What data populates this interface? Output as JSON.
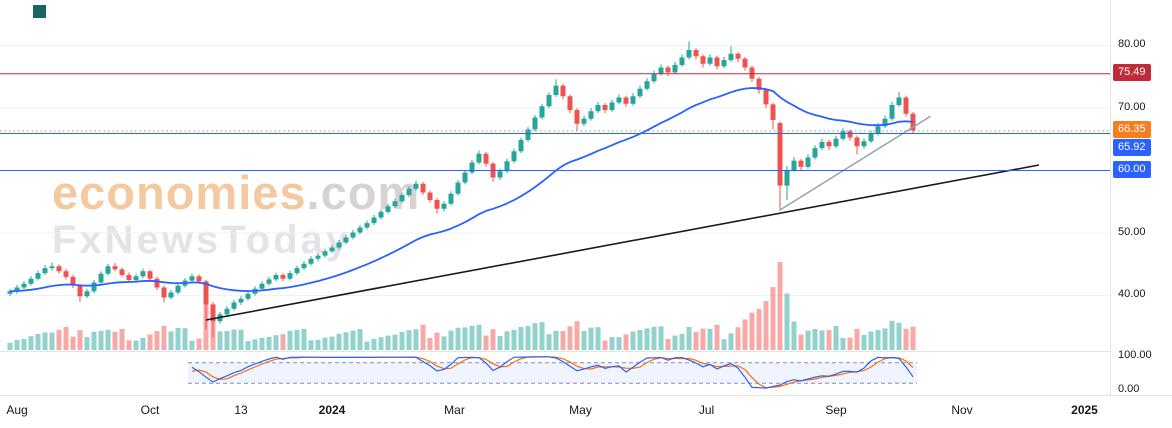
{
  "watermark": {
    "brand": "economies",
    "suffix": ".com",
    "subtitle": "FxNewsToday"
  },
  "colors": {
    "background": "#ffffff",
    "grid": "#eef1f6",
    "candle_up": "#26a69a",
    "candle_down": "#ef5350",
    "volume_up": "rgba(38,166,154,0.5)",
    "volume_down": "rgba(239,83,80,0.5)",
    "ma_line": "#2962ff",
    "axis_text": "#131722",
    "pane_separator": "#e0e3eb"
  },
  "chart_data": {
    "type": "candlestick",
    "title": "",
    "y_ticks": [
      {
        "label": "80.00",
        "price": 80
      },
      {
        "label": "70.00",
        "price": 70
      },
      {
        "label": "50.00",
        "price": 50
      },
      {
        "label": "40.00",
        "price": 40
      }
    ],
    "osc_ticks": [
      {
        "label": "100.00",
        "value": 100
      },
      {
        "label": "0.00",
        "value": 0
      }
    ],
    "x_ticks": [
      {
        "label": "Aug",
        "bar": 1,
        "bold": false
      },
      {
        "label": "Oct",
        "bar": 20,
        "bold": false
      },
      {
        "label": "13",
        "bar": 33,
        "bold": false
      },
      {
        "label": "2024",
        "bar": 46,
        "bold": true
      },
      {
        "label": "Mar",
        "bar": 63.5,
        "bold": false
      },
      {
        "label": "May",
        "bar": 81.5,
        "bold": false
      },
      {
        "label": "Jul",
        "bar": 99.5,
        "bold": false
      },
      {
        "label": "Sep",
        "bar": 118,
        "bold": false
      },
      {
        "label": "Nov",
        "bar": 136,
        "bold": false
      },
      {
        "label": "2025",
        "bar": 153.5,
        "bold": true
      }
    ],
    "price_grid": [
      80,
      70,
      60,
      50,
      40
    ],
    "price_lines": [
      {
        "price": 75.49,
        "label": "75.49",
        "color": "#c02b3a",
        "style": "solid"
      },
      {
        "price": 66.35,
        "label": "66.35",
        "color": "#f57f1f",
        "style": "dotted",
        "line_color": "#9598a1"
      },
      {
        "price": 65.92,
        "label": "65.92",
        "color": "#2962ff",
        "style": "solid"
      },
      {
        "price": 60.0,
        "label": "60.00",
        "color": "#2962ff",
        "style": "solid"
      }
    ],
    "trendlines": [
      {
        "from_bar": 28,
        "from_price": 36.0,
        "to_bar": 147,
        "to_price": 60.8,
        "color": "#1b1b1b",
        "width": 1.6
      },
      {
        "from_bar": 110,
        "from_price": 53.6,
        "to_bar": 131.5,
        "to_price": 68.6,
        "color": "#9aa0aa",
        "width": 1.5
      }
    ],
    "moving_average": {
      "color": "#2962ff"
    },
    "oscillator": {
      "type": "stochastic",
      "range": [
        0,
        100
      ],
      "bands": [
        20,
        80
      ],
      "k_color": "#2962ff",
      "d_color": "#ff6d00",
      "band_fill": "rgba(41,98,255,0.07)",
      "band_line_color": "#7e8cc0",
      "start_bar": 26
    },
    "last_price": 66.35,
    "candles": [
      [
        40.2,
        41.0,
        39.8,
        40.6
      ],
      [
        40.6,
        41.6,
        40.2,
        41.2
      ],
      [
        41.2,
        42.2,
        40.9,
        41.8
      ],
      [
        41.8,
        43.0,
        41.5,
        42.6
      ],
      [
        42.6,
        43.9,
        42.3,
        43.5
      ],
      [
        43.5,
        44.8,
        43.2,
        44.3
      ],
      [
        44.3,
        45.2,
        43.9,
        44.6
      ],
      [
        44.6,
        44.9,
        43.4,
        43.8
      ],
      [
        43.8,
        44.2,
        42.5,
        42.9
      ],
      [
        42.9,
        43.2,
        41.1,
        41.5
      ],
      [
        41.5,
        41.8,
        38.9,
        39.8
      ],
      [
        39.8,
        41.0,
        39.5,
        40.6
      ],
      [
        40.6,
        42.4,
        40.3,
        42.0
      ],
      [
        42.0,
        43.8,
        41.8,
        43.4
      ],
      [
        43.4,
        45.0,
        43.1,
        44.6
      ],
      [
        44.6,
        45.1,
        43.8,
        44.1
      ],
      [
        44.1,
        44.4,
        42.9,
        43.2
      ],
      [
        43.2,
        43.6,
        42.0,
        42.4
      ],
      [
        42.4,
        43.4,
        42.1,
        43.0
      ],
      [
        43.0,
        44.2,
        42.7,
        43.8
      ],
      [
        43.8,
        44.0,
        42.2,
        42.6
      ],
      [
        42.6,
        42.9,
        40.8,
        41.2
      ],
      [
        41.2,
        41.5,
        38.8,
        39.6
      ],
      [
        39.6,
        40.8,
        39.3,
        40.4
      ],
      [
        40.4,
        41.9,
        40.1,
        41.5
      ],
      [
        41.5,
        42.7,
        41.2,
        42.3
      ],
      [
        42.3,
        43.4,
        42.0,
        43.0
      ],
      [
        43.0,
        43.3,
        41.8,
        42.2
      ],
      [
        42.2,
        42.4,
        34.5,
        38.5
      ],
      [
        38.5,
        38.9,
        33.2,
        35.8
      ],
      [
        35.8,
        37.3,
        35.4,
        36.9
      ],
      [
        36.9,
        38.2,
        36.5,
        37.8
      ],
      [
        37.8,
        39.2,
        37.5,
        38.8
      ],
      [
        38.8,
        39.8,
        38.4,
        39.4
      ],
      [
        39.4,
        40.6,
        39.1,
        40.2
      ],
      [
        40.2,
        41.4,
        39.9,
        41.0
      ],
      [
        41.0,
        42.2,
        40.7,
        41.8
      ],
      [
        41.8,
        42.9,
        41.5,
        42.5
      ],
      [
        42.5,
        43.6,
        42.2,
        43.2
      ],
      [
        43.2,
        43.5,
        42.2,
        42.6
      ],
      [
        42.6,
        43.9,
        42.3,
        43.5
      ],
      [
        43.5,
        44.7,
        43.2,
        44.3
      ],
      [
        44.3,
        45.4,
        44.0,
        45.0
      ],
      [
        45.0,
        46.2,
        44.7,
        45.8
      ],
      [
        45.8,
        46.7,
        45.4,
        46.3
      ],
      [
        46.3,
        47.4,
        46.0,
        47.0
      ],
      [
        47.0,
        48.0,
        46.7,
        47.6
      ],
      [
        47.6,
        48.8,
        47.3,
        48.4
      ],
      [
        48.4,
        49.6,
        48.1,
        49.2
      ],
      [
        49.2,
        50.4,
        48.9,
        50.0
      ],
      [
        50.0,
        51.2,
        49.7,
        50.8
      ],
      [
        50.8,
        51.9,
        50.5,
        51.5
      ],
      [
        51.5,
        52.8,
        51.2,
        52.4
      ],
      [
        52.4,
        53.7,
        52.1,
        53.3
      ],
      [
        53.3,
        54.6,
        53.0,
        54.2
      ],
      [
        54.2,
        55.4,
        53.9,
        55.0
      ],
      [
        55.0,
        56.4,
        54.7,
        56.0
      ],
      [
        56.0,
        57.4,
        55.7,
        57.0
      ],
      [
        57.0,
        58.3,
        56.7,
        57.8
      ],
      [
        57.8,
        58.1,
        56.0,
        56.4
      ],
      [
        56.4,
        56.7,
        54.8,
        55.2
      ],
      [
        55.2,
        55.5,
        53.0,
        53.8
      ],
      [
        53.8,
        55.0,
        53.4,
        54.6
      ],
      [
        54.6,
        56.6,
        54.3,
        56.2
      ],
      [
        56.2,
        58.4,
        55.9,
        58.0
      ],
      [
        58.0,
        60.0,
        57.7,
        59.6
      ],
      [
        59.6,
        61.6,
        59.3,
        61.2
      ],
      [
        61.2,
        63.1,
        60.9,
        62.6
      ],
      [
        62.6,
        62.9,
        60.5,
        61.0
      ],
      [
        61.0,
        61.3,
        58.1,
        58.8
      ],
      [
        58.8,
        60.2,
        58.4,
        59.8
      ],
      [
        59.8,
        61.8,
        59.5,
        61.4
      ],
      [
        61.4,
        63.4,
        61.1,
        63.0
      ],
      [
        63.0,
        65.2,
        62.7,
        64.8
      ],
      [
        64.8,
        66.9,
        64.5,
        66.5
      ],
      [
        66.5,
        68.8,
        66.2,
        68.4
      ],
      [
        68.4,
        70.6,
        68.1,
        70.2
      ],
      [
        70.2,
        72.4,
        69.9,
        72.0
      ],
      [
        72.0,
        74.5,
        71.7,
        73.5
      ],
      [
        73.5,
        73.8,
        71.3,
        71.8
      ],
      [
        71.8,
        72.1,
        69.1,
        69.6
      ],
      [
        69.6,
        69.9,
        66.3,
        67.4
      ],
      [
        67.4,
        68.7,
        67.0,
        68.2
      ],
      [
        68.2,
        69.9,
        67.9,
        69.4
      ],
      [
        69.4,
        70.9,
        69.1,
        70.4
      ],
      [
        70.4,
        70.7,
        69.1,
        69.6
      ],
      [
        69.6,
        71.2,
        69.3,
        70.8
      ],
      [
        70.8,
        72.1,
        70.5,
        71.6
      ],
      [
        71.6,
        71.9,
        70.1,
        70.6
      ],
      [
        70.6,
        72.3,
        70.3,
        71.8
      ],
      [
        71.8,
        73.5,
        71.5,
        73.0
      ],
      [
        73.0,
        74.7,
        72.7,
        74.2
      ],
      [
        74.2,
        75.9,
        73.9,
        75.4
      ],
      [
        75.4,
        76.9,
        75.1,
        76.4
      ],
      [
        76.4,
        76.7,
        75.0,
        75.6
      ],
      [
        75.6,
        77.3,
        75.3,
        76.8
      ],
      [
        76.8,
        78.5,
        76.5,
        78.0
      ],
      [
        78.0,
        80.6,
        77.7,
        79.2
      ],
      [
        79.2,
        79.5,
        77.7,
        78.2
      ],
      [
        78.2,
        78.5,
        76.4,
        77.0
      ],
      [
        77.0,
        78.5,
        76.7,
        78.0
      ],
      [
        78.0,
        78.3,
        76.1,
        76.6
      ],
      [
        76.6,
        78.1,
        76.3,
        77.6
      ],
      [
        77.6,
        79.8,
        77.3,
        78.6
      ],
      [
        78.6,
        78.9,
        77.2,
        77.8
      ],
      [
        77.8,
        78.1,
        75.9,
        76.4
      ],
      [
        76.4,
        76.7,
        74.1,
        74.6
      ],
      [
        74.6,
        74.9,
        72.2,
        72.8
      ],
      [
        72.8,
        73.1,
        69.9,
        70.5
      ],
      [
        70.5,
        70.8,
        66.5,
        68.0
      ],
      [
        67.5,
        67.8,
        53.5,
        57.5
      ],
      [
        57.5,
        60.6,
        55.2,
        60.0
      ],
      [
        60.0,
        62.1,
        59.7,
        61.5
      ],
      [
        61.5,
        61.8,
        59.9,
        60.5
      ],
      [
        60.5,
        62.5,
        60.2,
        62.0
      ],
      [
        62.0,
        64.0,
        61.7,
        63.5
      ],
      [
        63.5,
        65.0,
        63.2,
        64.5
      ],
      [
        64.5,
        64.8,
        63.2,
        63.8
      ],
      [
        63.8,
        65.5,
        63.5,
        65.0
      ],
      [
        65.0,
        66.7,
        64.7,
        66.2
      ],
      [
        66.2,
        66.5,
        64.7,
        65.2
      ],
      [
        65.2,
        65.5,
        62.5,
        63.8
      ],
      [
        63.8,
        65.1,
        63.4,
        64.6
      ],
      [
        64.6,
        66.3,
        64.3,
        65.8
      ],
      [
        65.8,
        67.5,
        65.5,
        67.0
      ],
      [
        67.0,
        68.7,
        66.7,
        68.2
      ],
      [
        68.2,
        70.9,
        67.9,
        70.4
      ],
      [
        70.4,
        72.5,
        70.1,
        71.6
      ],
      [
        71.6,
        71.9,
        68.5,
        69.0
      ],
      [
        69.0,
        69.3,
        65.8,
        66.35
      ]
    ]
  }
}
